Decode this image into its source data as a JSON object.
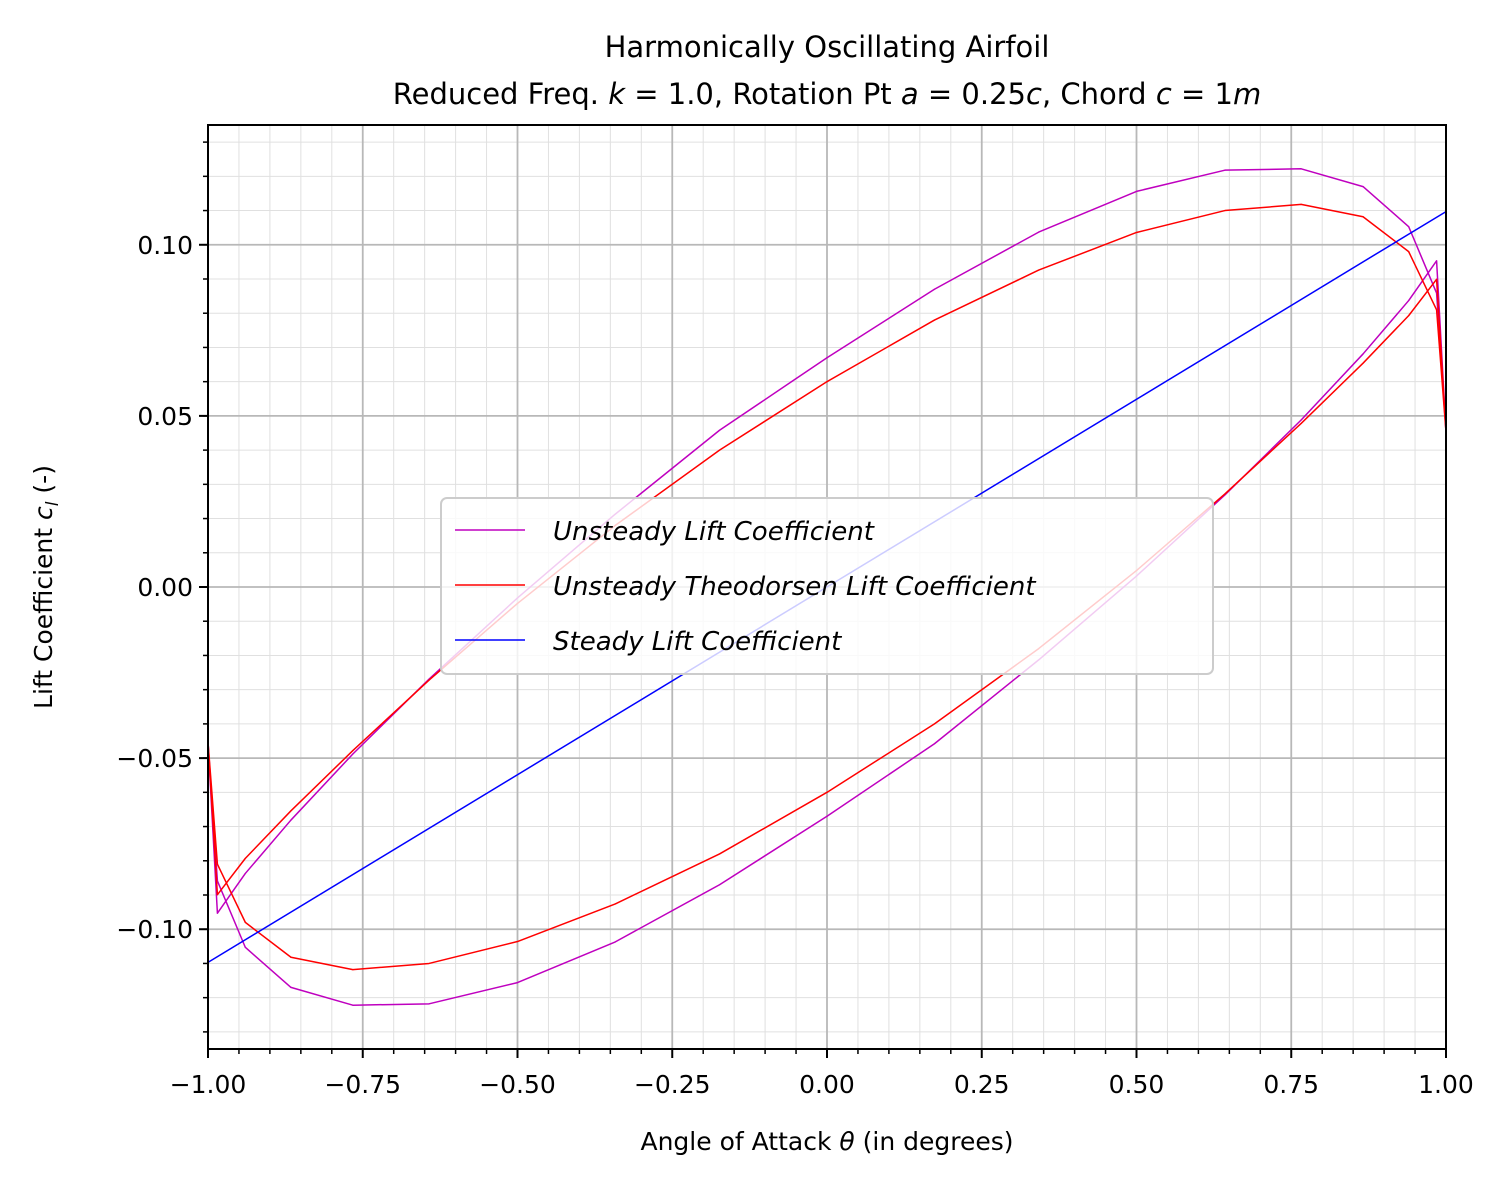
{
  "chart_data": {
    "type": "line",
    "title_line1": "Harmonically Oscillating Airfoil",
    "title_line2": {
      "pre": "Reduced Freq. ",
      "k_sym": "k",
      "k_val": " = 1.0, Rotation Pt ",
      "a_sym": "a",
      "a_val": " = 0.25",
      "a_c": "c",
      "mid": ", Chord ",
      "c_sym": "c",
      "c_val": " = 1",
      "m_sym": "m"
    },
    "xlabel": {
      "pre": "Angle of Attack ",
      "sym": "θ",
      "post": " (in degrees)"
    },
    "ylabel": {
      "pre": "Lift Coefficient ",
      "sym": "c",
      "sub": "l",
      "post": " (-)"
    },
    "xlim": [
      -1.0,
      1.0
    ],
    "ylim": [
      -0.135,
      0.135
    ],
    "xticks": [
      -1.0,
      -0.75,
      -0.5,
      -0.25,
      0.0,
      0.25,
      0.5,
      0.75,
      1.0
    ],
    "xtick_labels": [
      "−1.00",
      "−0.75",
      "−0.50",
      "−0.25",
      "0.00",
      "0.25",
      "0.50",
      "0.75",
      "1.00"
    ],
    "yticks": [
      -0.1,
      -0.05,
      0.0,
      0.05,
      0.1
    ],
    "ytick_labels": [
      "−0.10",
      "−0.05",
      "0.00",
      "0.05",
      "0.10"
    ],
    "grid": true,
    "minor_grid": true,
    "legend_position": "center",
    "series": [
      {
        "name": "Unsteady Lift Coefficient",
        "color": "#bf00bf",
        "x": [
          1.0,
          0.9848,
          0.9397,
          0.866,
          0.766,
          0.6428,
          0.5,
          0.342,
          0.1736,
          0.0,
          -0.1736,
          -0.342,
          -0.5,
          -0.6428,
          -0.766,
          -0.866,
          -0.9397,
          -0.9848,
          -1.0,
          -0.9848,
          -0.9397,
          -0.866,
          -0.766,
          -0.6428,
          -0.5,
          -0.342,
          -0.1736,
          0.0,
          0.1736,
          0.342,
          0.5,
          0.6428,
          0.766,
          0.866,
          0.9397,
          0.9848,
          1.0
        ],
        "y": [
          0.0453,
          0.0859,
          0.1053,
          0.117,
          0.1222,
          0.1218,
          0.1156,
          0.1037,
          0.087,
          0.067,
          0.0458,
          0.0213,
          -0.0032,
          -0.0269,
          -0.0488,
          -0.0681,
          -0.0837,
          -0.0953,
          -0.0453,
          -0.0859,
          -0.1053,
          -0.117,
          -0.1222,
          -0.1218,
          -0.1156,
          -0.1037,
          -0.087,
          -0.067,
          -0.0458,
          -0.0213,
          0.0032,
          0.0269,
          0.0488,
          0.0681,
          0.0837,
          0.0953,
          0.0453
        ]
      },
      {
        "name": "Unsteady Theodorsen Lift Coefficient",
        "color": "#ff0000",
        "x": [
          1.0,
          0.9848,
          0.9397,
          0.866,
          0.766,
          0.6428,
          0.5,
          0.342,
          0.1736,
          0.0,
          -0.1736,
          -0.342,
          -0.5,
          -0.6428,
          -0.766,
          -0.866,
          -0.9397,
          -0.9848,
          -1.0,
          -0.9848,
          -0.9397,
          -0.866,
          -0.766,
          -0.6428,
          -0.5,
          -0.342,
          -0.1736,
          0.0,
          0.1736,
          0.342,
          0.5,
          0.6428,
          0.766,
          0.866,
          0.9397,
          0.9848,
          1.0
        ],
        "y": [
          0.0453,
          0.081,
          0.098,
          0.1082,
          0.1118,
          0.11,
          0.1036,
          0.0926,
          0.078,
          0.06,
          0.04,
          0.018,
          -0.0048,
          -0.0272,
          -0.0478,
          -0.0654,
          -0.0793,
          -0.0899,
          -0.0453,
          -0.081,
          -0.098,
          -0.1082,
          -0.1118,
          -0.11,
          -0.1036,
          -0.0926,
          -0.078,
          -0.06,
          -0.04,
          -0.018,
          0.0048,
          0.0272,
          0.0478,
          0.0654,
          0.0793,
          0.0899,
          0.0453
        ]
      },
      {
        "name": "Steady Lift Coefficient",
        "color": "#0000ff",
        "x": [
          -1.0,
          1.0
        ],
        "y": [
          -0.1097,
          0.1097
        ]
      }
    ]
  }
}
